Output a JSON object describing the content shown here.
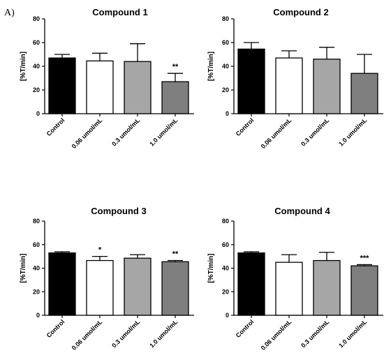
{
  "figure": {
    "panel_label": "A)"
  },
  "chart_data": [
    {
      "type": "bar",
      "title": "Compound 1",
      "ylabel": "[%T/min]",
      "ylim": [
        0,
        80
      ],
      "yticks": [
        0,
        20,
        40,
        60,
        80
      ],
      "categories": [
        "Control",
        "0.06 umol/mL",
        "0.3 umol/mL",
        "1.0 umol/mL"
      ],
      "values": [
        47,
        44.5,
        44,
        27
      ],
      "errors": [
        3,
        6.5,
        15,
        7
      ],
      "significance": [
        "",
        "",
        "",
        "**"
      ],
      "colors": [
        "#000000",
        "#ffffff",
        "#a6a6a6",
        "#7f7f7f"
      ]
    },
    {
      "type": "bar",
      "title": "Compound 2",
      "ylabel": "[%T/min]",
      "ylim": [
        0,
        80
      ],
      "yticks": [
        0,
        20,
        40,
        60,
        80
      ],
      "categories": [
        "Control",
        "0.06 umol/mL",
        "0.3 umol/mL",
        "1.0 umol/mL"
      ],
      "values": [
        54.5,
        47,
        46,
        34
      ],
      "errors": [
        5.5,
        6,
        10,
        16
      ],
      "significance": [
        "",
        "",
        "",
        ""
      ],
      "colors": [
        "#000000",
        "#ffffff",
        "#a6a6a6",
        "#7f7f7f"
      ]
    },
    {
      "type": "bar",
      "title": "Compound 3",
      "ylabel": "[%T/min]",
      "ylim": [
        0,
        80
      ],
      "yticks": [
        0,
        20,
        40,
        60,
        80
      ],
      "categories": [
        "Control",
        "0.06 umol/mL",
        "0.3 umol/mL",
        "1.0 umol/mL"
      ],
      "values": [
        53,
        46.5,
        48.5,
        45.5
      ],
      "errors": [
        1,
        3.5,
        3,
        1
      ],
      "significance": [
        "",
        "*",
        "",
        "**"
      ],
      "colors": [
        "#000000",
        "#ffffff",
        "#a6a6a6",
        "#7f7f7f"
      ]
    },
    {
      "type": "bar",
      "title": "Compound 4",
      "ylabel": "[%T/min]",
      "ylim": [
        0,
        80
      ],
      "yticks": [
        0,
        20,
        40,
        60,
        80
      ],
      "categories": [
        "Control",
        "0.06 umol/mL",
        "0.3 umol/mL",
        "1.0 umol/mL"
      ],
      "values": [
        53,
        45,
        46.5,
        42
      ],
      "errors": [
        1,
        6.5,
        7,
        1
      ],
      "significance": [
        "",
        "",
        "",
        "***"
      ],
      "colors": [
        "#000000",
        "#ffffff",
        "#a6a6a6",
        "#7f7f7f"
      ]
    }
  ]
}
